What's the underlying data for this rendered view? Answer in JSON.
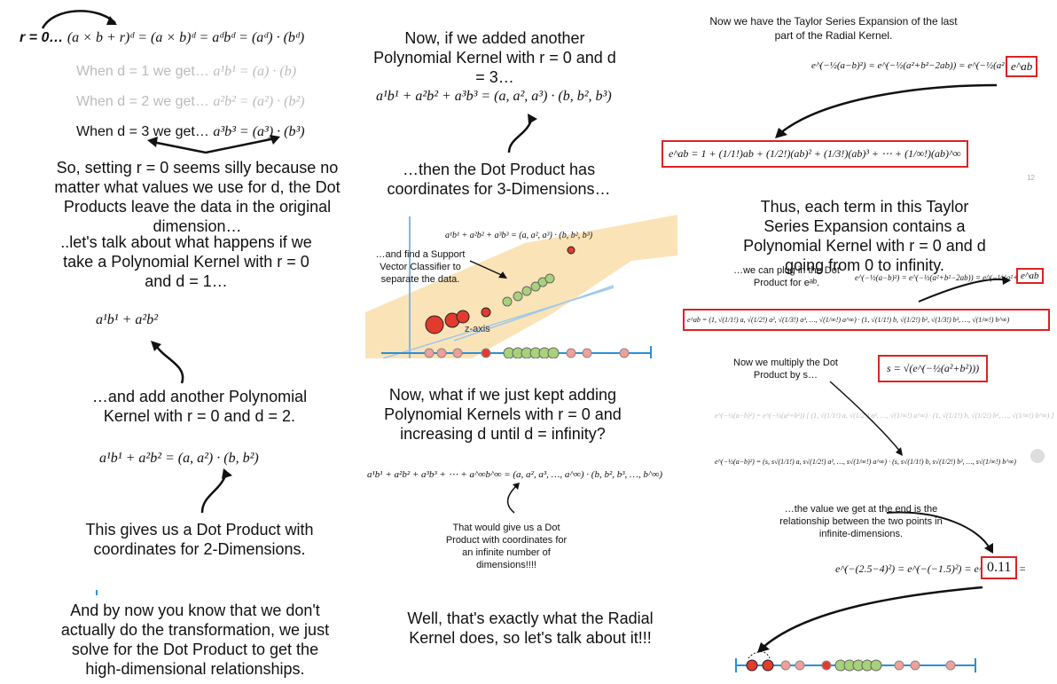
{
  "col1": {
    "top_lhs": "r = 0…",
    "top_formula": "(a × b + r)ᵈ = (a × b)ᵈ = aᵈbᵈ = (aᵈ) · (bᵈ)",
    "d1_prefix": "When d = 1 we get…",
    "d1_formula": "a¹b¹ = (a) · (b)",
    "d2_prefix": "When d = 2 we get…",
    "d2_formula": "a²b² = (a²) · (b²)",
    "d3_prefix": "When d = 3 we get…",
    "d3_formula": "a³b³ = (a³) · (b³)",
    "silly_text": "So, setting r = 0 seems silly because no matter what values we use for d, the Dot Products leave the data in the original dimension…",
    "talk_text": "..let's talk about what happens if we take a Polynomial Kernel with r = 0 and d = 1…",
    "formula_d1": "a¹b¹ + a²b²",
    "add_text": "…and add another Polynomial Kernel with r = 0 and d = 2.",
    "formula_d2": "a¹b¹ + a²b² = (a, a²) · (b, b²)",
    "gives_text": "This gives us a Dot Product with coordinates for 2-Dimensions.",
    "bynow_text": "And by now you know that we don't actually do the transformation, we just solve for the Dot Product to get the high-dimensional relationships."
  },
  "col2": {
    "added_text": "Now, if we added another Polynomial Kernel with r = 0 and d = 3…",
    "formula_d3": "a¹b¹ + a²b² + a³b³ = (a, a², a³) · (b, b², b³)",
    "then_text": "…then the Dot Product has coordinates for 3-Dimensions…",
    "plot_formula": "a¹b¹ + a²b² + a³b³ = (a, a², a³) · (b, b², b³)",
    "plot_note": "…and find a Support Vector Classifier to separate the data.",
    "z_axis_label": "z-axis",
    "kept_text": "Now, what if we just kept adding Polynomial Kernels with r = 0 and increasing d until d = infinity?",
    "formula_inf": "a¹b¹ + a²b² + a³b³ + ⋯ + a^∞b^∞ = (a, a², a³, …, a^∞) · (b, b², b³, …, b^∞)",
    "infinite_text": "That would give us a Dot Product with coordinates for an infinite number of dimensions!!!!",
    "radial_text": "Well, that's exactly what the Radial Kernel does, so let's talk about it!!!"
  },
  "col3": {
    "taylor_title": "Now we have the Taylor Series Expansion of the last part of the Radial Kernel.",
    "radial_formula": "e^(−½(a−b)²) = e^(−½(a²+b²−2ab)) = e^(−½(a²+b²))",
    "eab": "e^ab",
    "taylor_series": "e^ab = 1 + (1/1!)ab + (1/2!)(ab)² + (1/3!)(ab)³ + ⋯ + (1/∞!)(ab)^∞",
    "corner_mark": "12",
    "thus_text": "Thus, each term in this Taylor Series Expansion contains a Polynomial Kernel with r = 0 and d going from 0 to infinity.",
    "plug_text": "…we can plug in the Dot Product for eᵃᵇ.",
    "radial_formula_small": "e^(−½(a−b)²) = e^(−½(a²+b²−2ab)) = e^(−½(a²+b²))",
    "eab_small": "e^ab",
    "expanded_dot": "e^ab = (1, √(1/1!) a, √(1/2!) a², √(1/3!) a³, …, √(1/∞!) a^∞) · (1, √(1/1!) b, √(1/2!) b², √(1/3!) b³, …, √(1/∞!) b^∞)",
    "multiply_text": "Now we multiply the Dot Product by s…",
    "s_formula": "s = √(e^(−½(a²+b²)))",
    "faint_formula": "e^(−½(a−b)²) = e^(−½(a²+b²)) [ (1, √(1/1!) a, √(1/2!) a², …, √(1/∞!) a^∞) · (1, √(1/1!) b, √(1/2!) b², …, √(1/∞!) b^∞) ]",
    "final_formula": "e^(−½(a−b)²) = (s, s√(1/1!) a, s√(1/2!) a², …, s√(1/∞!) a^∞) · (s, s√(1/1!) b, s√(1/2!) b², …, s√(1/∞!) b^∞)",
    "value_text": "…the value we get at the end is the relationship between the two points in infinite-dimensions.",
    "numeric_formula": "e^(−(2.5−4)²) = e^(−(−1.5)²) = e^(−2.25) =",
    "result": "0.11"
  },
  "colors": {
    "red": "#e23b2e",
    "green": "#a8d27a",
    "pink": "#f0a09a",
    "axis": "#2b8fd6",
    "band": "#fbe3b8"
  }
}
